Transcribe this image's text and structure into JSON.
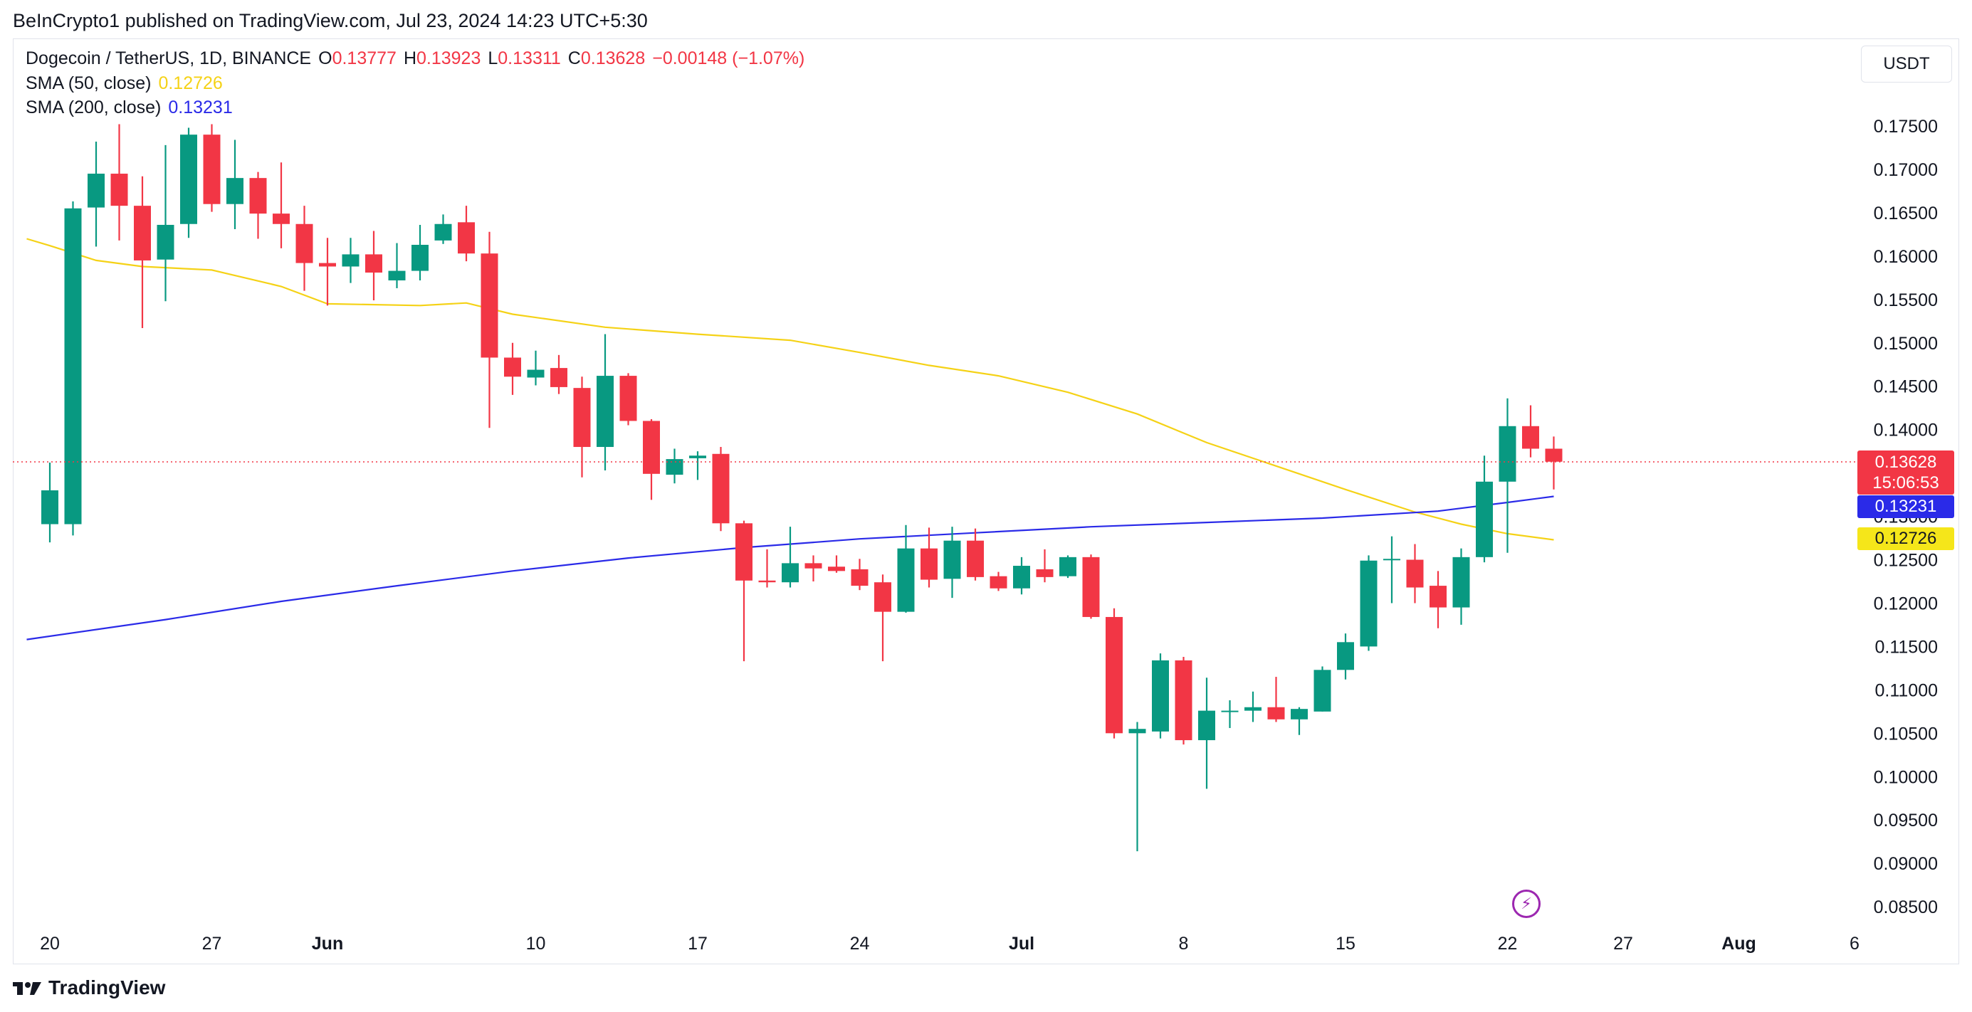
{
  "header": {
    "published": "BeInCrypto1 published on TradingView.com, Jul 23, 2024 14:23 UTC+5:30"
  },
  "legend": {
    "symbol": "Dogecoin / TetherUS, 1D, BINANCE",
    "o_label": "O",
    "o": "0.13777",
    "h_label": "H",
    "h": "0.13923",
    "l_label": "L",
    "l": "0.13311",
    "c_label": "C",
    "c": "0.13628",
    "change": "−0.00148 (−1.07%)",
    "sma50_label": "SMA (50, close)",
    "sma50_value": "0.12726",
    "sma200_label": "SMA (200, close)",
    "sma200_value": "0.13231"
  },
  "price_axis": {
    "unit": "USDT"
  },
  "price_labels": {
    "last": "0.13628",
    "countdown": "15:06:53",
    "sma200": "0.13231",
    "sma50": "0.12726"
  },
  "footer": {
    "brand": "TradingView"
  },
  "colors": {
    "up": "#089981",
    "down": "#f23645",
    "sma50": "#f5d216",
    "sma200": "#2a2ae8"
  },
  "chart_data": {
    "type": "candlestick",
    "title": "Dogecoin / TetherUS, 1D, BINANCE",
    "ylim": [
      0.083,
      0.18
    ],
    "y_ticks": [
      "0.17500",
      "0.17000",
      "0.16500",
      "0.16000",
      "0.15500",
      "0.15000",
      "0.14500",
      "0.14000",
      "0.13500",
      "0.13000",
      "0.12500",
      "0.12000",
      "0.11500",
      "0.11000",
      "0.10500",
      "0.10000",
      "0.09500",
      "0.09000",
      "0.08500"
    ],
    "x_ticks": [
      {
        "label": "20",
        "day": 0
      },
      {
        "label": "27",
        "day": 7
      },
      {
        "label": "Jun",
        "day": 12
      },
      {
        "label": "10",
        "day": 21
      },
      {
        "label": "17",
        "day": 28
      },
      {
        "label": "24",
        "day": 35
      },
      {
        "label": "Jul",
        "day": 42
      },
      {
        "label": "8",
        "day": 49
      },
      {
        "label": "15",
        "day": 56
      },
      {
        "label": "22",
        "day": 63
      },
      {
        "label": "27",
        "day": 68
      },
      {
        "label": "Aug",
        "day": 73
      },
      {
        "label": "6",
        "day": 78
      }
    ],
    "first_day": "2024-05-20",
    "candles": [
      {
        "o": 0.1291,
        "h": 0.1362,
        "l": 0.127,
        "c": 0.133
      },
      {
        "o": 0.1291,
        "h": 0.1663,
        "l": 0.1278,
        "c": 0.1655
      },
      {
        "o": 0.1656,
        "h": 0.1732,
        "l": 0.1611,
        "c": 0.1695
      },
      {
        "o": 0.1695,
        "h": 0.1752,
        "l": 0.1618,
        "c": 0.1658
      },
      {
        "o": 0.1658,
        "h": 0.1692,
        "l": 0.1517,
        "c": 0.1595
      },
      {
        "o": 0.1596,
        "h": 0.1728,
        "l": 0.1548,
        "c": 0.1636
      },
      {
        "o": 0.1637,
        "h": 0.1748,
        "l": 0.1621,
        "c": 0.174
      },
      {
        "o": 0.174,
        "h": 0.1752,
        "l": 0.1651,
        "c": 0.166
      },
      {
        "o": 0.166,
        "h": 0.1734,
        "l": 0.1631,
        "c": 0.169
      },
      {
        "o": 0.169,
        "h": 0.1697,
        "l": 0.162,
        "c": 0.1649
      },
      {
        "o": 0.1649,
        "h": 0.1708,
        "l": 0.1609,
        "c": 0.1637
      },
      {
        "o": 0.1637,
        "h": 0.1658,
        "l": 0.156,
        "c": 0.1592
      },
      {
        "o": 0.1592,
        "h": 0.1621,
        "l": 0.1543,
        "c": 0.1588
      },
      {
        "o": 0.1588,
        "h": 0.1621,
        "l": 0.1569,
        "c": 0.1602
      },
      {
        "o": 0.1602,
        "h": 0.1629,
        "l": 0.1549,
        "c": 0.1581
      },
      {
        "o": 0.1572,
        "h": 0.1615,
        "l": 0.1563,
        "c": 0.1583
      },
      {
        "o": 0.1583,
        "h": 0.1636,
        "l": 0.1572,
        "c": 0.1613
      },
      {
        "o": 0.1618,
        "h": 0.1648,
        "l": 0.1614,
        "c": 0.1637
      },
      {
        "o": 0.1639,
        "h": 0.1658,
        "l": 0.1594,
        "c": 0.1603
      },
      {
        "o": 0.1603,
        "h": 0.1628,
        "l": 0.1402,
        "c": 0.1483
      },
      {
        "o": 0.1483,
        "h": 0.15,
        "l": 0.144,
        "c": 0.1461
      },
      {
        "o": 0.146,
        "h": 0.1491,
        "l": 0.1451,
        "c": 0.1469
      },
      {
        "o": 0.1471,
        "h": 0.1486,
        "l": 0.1441,
        "c": 0.1449
      },
      {
        "o": 0.1448,
        "h": 0.1461,
        "l": 0.1345,
        "c": 0.138
      },
      {
        "o": 0.138,
        "h": 0.151,
        "l": 0.1353,
        "c": 0.1462
      },
      {
        "o": 0.1462,
        "h": 0.1465,
        "l": 0.1405,
        "c": 0.141
      },
      {
        "o": 0.141,
        "h": 0.1412,
        "l": 0.1319,
        "c": 0.1349
      },
      {
        "o": 0.1348,
        "h": 0.1378,
        "l": 0.1338,
        "c": 0.1366
      },
      {
        "o": 0.1367,
        "h": 0.1375,
        "l": 0.1342,
        "c": 0.137
      },
      {
        "o": 0.1372,
        "h": 0.138,
        "l": 0.1283,
        "c": 0.1292
      },
      {
        "o": 0.1292,
        "h": 0.1295,
        "l": 0.1133,
        "c": 0.1226
      },
      {
        "o": 0.1226,
        "h": 0.1262,
        "l": 0.1218,
        "c": 0.1224
      },
      {
        "o": 0.1224,
        "h": 0.1288,
        "l": 0.1218,
        "c": 0.1246
      },
      {
        "o": 0.1246,
        "h": 0.1255,
        "l": 0.1225,
        "c": 0.124
      },
      {
        "o": 0.1242,
        "h": 0.1255,
        "l": 0.1235,
        "c": 0.1237
      },
      {
        "o": 0.1239,
        "h": 0.1251,
        "l": 0.1215,
        "c": 0.122
      },
      {
        "o": 0.1224,
        "h": 0.1233,
        "l": 0.1133,
        "c": 0.119
      },
      {
        "o": 0.119,
        "h": 0.129,
        "l": 0.1189,
        "c": 0.1263
      },
      {
        "o": 0.1263,
        "h": 0.1287,
        "l": 0.1218,
        "c": 0.1227
      },
      {
        "o": 0.1228,
        "h": 0.1288,
        "l": 0.1206,
        "c": 0.1272
      },
      {
        "o": 0.1272,
        "h": 0.1286,
        "l": 0.1226,
        "c": 0.123
      },
      {
        "o": 0.1231,
        "h": 0.1236,
        "l": 0.1214,
        "c": 0.1217
      },
      {
        "o": 0.1217,
        "h": 0.1253,
        "l": 0.121,
        "c": 0.1243
      },
      {
        "o": 0.1239,
        "h": 0.1262,
        "l": 0.1224,
        "c": 0.123
      },
      {
        "o": 0.1231,
        "h": 0.1255,
        "l": 0.1229,
        "c": 0.1253
      },
      {
        "o": 0.1253,
        "h": 0.1256,
        "l": 0.1182,
        "c": 0.1184
      },
      {
        "o": 0.1184,
        "h": 0.1194,
        "l": 0.1044,
        "c": 0.105
      },
      {
        "o": 0.105,
        "h": 0.1063,
        "l": 0.0914,
        "c": 0.1055
      },
      {
        "o": 0.1052,
        "h": 0.1142,
        "l": 0.1044,
        "c": 0.1134
      },
      {
        "o": 0.1134,
        "h": 0.1138,
        "l": 0.1037,
        "c": 0.1042
      },
      {
        "o": 0.1042,
        "h": 0.1114,
        "l": 0.0986,
        "c": 0.1076
      },
      {
        "o": 0.1076,
        "h": 0.1088,
        "l": 0.1056,
        "c": 0.1076
      },
      {
        "o": 0.1076,
        "h": 0.1098,
        "l": 0.1063,
        "c": 0.108
      },
      {
        "o": 0.108,
        "h": 0.1115,
        "l": 0.1063,
        "c": 0.1066
      },
      {
        "o": 0.1066,
        "h": 0.108,
        "l": 0.1048,
        "c": 0.1078
      },
      {
        "o": 0.1075,
        "h": 0.1127,
        "l": 0.1075,
        "c": 0.1123
      },
      {
        "o": 0.1123,
        "h": 0.1165,
        "l": 0.1112,
        "c": 0.1155
      },
      {
        "o": 0.115,
        "h": 0.1255,
        "l": 0.1145,
        "c": 0.1249
      },
      {
        "o": 0.125,
        "h": 0.1277,
        "l": 0.12,
        "c": 0.1251
      },
      {
        "o": 0.125,
        "h": 0.1268,
        "l": 0.12,
        "c": 0.1218
      },
      {
        "o": 0.122,
        "h": 0.1237,
        "l": 0.1171,
        "c": 0.1195
      },
      {
        "o": 0.1195,
        "h": 0.1263,
        "l": 0.1175,
        "c": 0.1253
      },
      {
        "o": 0.1253,
        "h": 0.137,
        "l": 0.1247,
        "c": 0.134
      },
      {
        "o": 0.134,
        "h": 0.1436,
        "l": 0.1258,
        "c": 0.1404
      },
      {
        "o": 0.1404,
        "h": 0.1428,
        "l": 0.1368,
        "c": 0.1378
      },
      {
        "o": 0.1378,
        "h": 0.1392,
        "l": 0.1331,
        "c": 0.1363
      }
    ],
    "sma50": [
      {
        "day": -1,
        "v": 0.162
      },
      {
        "day": 0,
        "v": 0.1612
      },
      {
        "day": 2,
        "v": 0.1595
      },
      {
        "day": 4,
        "v": 0.1588
      },
      {
        "day": 7,
        "v": 0.1584
      },
      {
        "day": 10,
        "v": 0.1565
      },
      {
        "day": 12,
        "v": 0.1545
      },
      {
        "day": 16,
        "v": 0.1543
      },
      {
        "day": 18,
        "v": 0.1546
      },
      {
        "day": 20,
        "v": 0.1533
      },
      {
        "day": 24,
        "v": 0.1518
      },
      {
        "day": 28,
        "v": 0.151
      },
      {
        "day": 32,
        "v": 0.1503
      },
      {
        "day": 35,
        "v": 0.1489
      },
      {
        "day": 38,
        "v": 0.1474
      },
      {
        "day": 41,
        "v": 0.1462
      },
      {
        "day": 44,
        "v": 0.1443
      },
      {
        "day": 47,
        "v": 0.1418
      },
      {
        "day": 50,
        "v": 0.1385
      },
      {
        "day": 53,
        "v": 0.1358
      },
      {
        "day": 56,
        "v": 0.1331
      },
      {
        "day": 59,
        "v": 0.1305
      },
      {
        "day": 61,
        "v": 0.1291
      },
      {
        "day": 63,
        "v": 0.128
      },
      {
        "day": 65,
        "v": 0.1273
      }
    ],
    "sma200": [
      {
        "day": -1,
        "v": 0.1158
      },
      {
        "day": 5,
        "v": 0.1181
      },
      {
        "day": 10,
        "v": 0.1202
      },
      {
        "day": 15,
        "v": 0.122
      },
      {
        "day": 20,
        "v": 0.1237
      },
      {
        "day": 25,
        "v": 0.1252
      },
      {
        "day": 30,
        "v": 0.1264
      },
      {
        "day": 35,
        "v": 0.1274
      },
      {
        "day": 40,
        "v": 0.1281
      },
      {
        "day": 45,
        "v": 0.1288
      },
      {
        "day": 50,
        "v": 0.1293
      },
      {
        "day": 55,
        "v": 0.1298
      },
      {
        "day": 60,
        "v": 0.1306
      },
      {
        "day": 63,
        "v": 0.1316
      },
      {
        "day": 65,
        "v": 0.1323
      }
    ],
    "last_price": 0.13628
  }
}
